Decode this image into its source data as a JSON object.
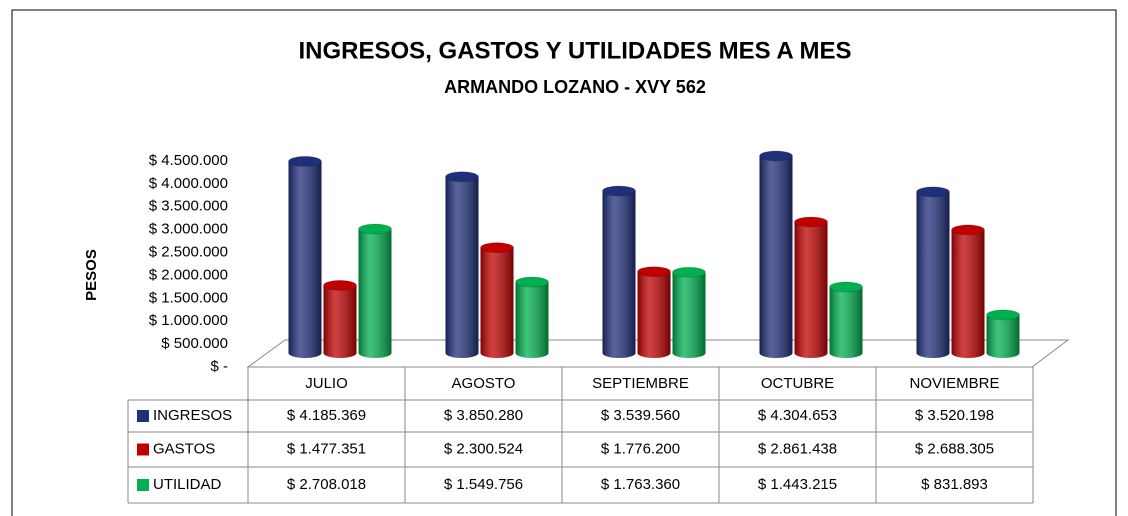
{
  "chart_data": {
    "type": "bar3d",
    "title": "INGRESOS, GASTOS Y UTILIDADES MES A MES",
    "subtitle": "ARMANDO LOZANO - XVY 562",
    "y_label": "PESOS",
    "categories": [
      "JULIO",
      "AGOSTO",
      "SEPTIEMBRE",
      "OCTUBRE",
      "NOVIEMBRE"
    ],
    "series": [
      {
        "name": "INGRESOS",
        "color": "#1f2f7a",
        "values": [
          4185369,
          3850280,
          3539560,
          4304653,
          3520198
        ],
        "value_labels": [
          "$ 4.185.369",
          "$ 3.850.280",
          "$ 3.539.560",
          "$ 4.304.653",
          "$ 3.520.198"
        ]
      },
      {
        "name": "GASTOS",
        "color": "#c00000",
        "values": [
          1477351,
          2300524,
          1776200,
          2861438,
          2688305
        ],
        "value_labels": [
          "$ 1.477.351",
          "$ 2.300.524",
          "$ 1.776.200",
          "$ 2.861.438",
          "$ 2.688.305"
        ]
      },
      {
        "name": "UTILIDAD",
        "color": "#00b050",
        "values": [
          2708018,
          1549756,
          1763360,
          1443215,
          831893
        ],
        "value_labels": [
          "$ 2.708.018",
          "$ 1.549.756",
          "$ 1.763.360",
          "$ 1.443.215",
          "$ 831.893"
        ]
      }
    ],
    "ylim": [
      0,
      4500000
    ],
    "yticks": [
      {
        "value": 0,
        "label": "$ -"
      },
      {
        "value": 500000,
        "label": "$ 500.000"
      },
      {
        "value": 1000000,
        "label": "$ 1.000.000"
      },
      {
        "value": 1500000,
        "label": "$ 1.500.000"
      },
      {
        "value": 2000000,
        "label": "$ 2.000.000"
      },
      {
        "value": 2500000,
        "label": "$ 2.500.000"
      },
      {
        "value": 3000000,
        "label": "$ 3.000.000"
      },
      {
        "value": 3500000,
        "label": "$ 3.500.000"
      },
      {
        "value": 4000000,
        "label": "$ 4.000.000"
      },
      {
        "value": 4500000,
        "label": "$ 4.500.000"
      }
    ]
  }
}
